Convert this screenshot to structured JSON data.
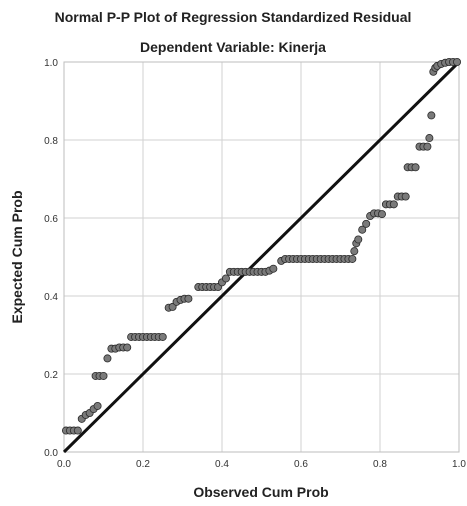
{
  "chart_data": {
    "type": "scatter",
    "title": "Normal P-P Plot of Regression Standardized Residual",
    "subtitle": "Dependent Variable: Kinerja",
    "xlabel": "Observed Cum Prob",
    "ylabel": "Expected Cum Prob",
    "xlim": [
      0,
      1
    ],
    "ylim": [
      0,
      1
    ],
    "xticks": [
      "0.0",
      "0.2",
      "0.4",
      "0.6",
      "0.8",
      "1.0"
    ],
    "yticks": [
      "0.0",
      "0.2",
      "0.4",
      "0.6",
      "0.8",
      "1.0"
    ],
    "grid": true,
    "reference_line": {
      "from": [
        0,
        0
      ],
      "to": [
        1,
        1
      ]
    },
    "points": [
      [
        0.005,
        0.055
      ],
      [
        0.015,
        0.055
      ],
      [
        0.025,
        0.055
      ],
      [
        0.035,
        0.055
      ],
      [
        0.045,
        0.085
      ],
      [
        0.055,
        0.095
      ],
      [
        0.065,
        0.1
      ],
      [
        0.075,
        0.11
      ],
      [
        0.085,
        0.118
      ],
      [
        0.08,
        0.195
      ],
      [
        0.09,
        0.195
      ],
      [
        0.1,
        0.195
      ],
      [
        0.11,
        0.24
      ],
      [
        0.12,
        0.265
      ],
      [
        0.13,
        0.265
      ],
      [
        0.14,
        0.268
      ],
      [
        0.15,
        0.268
      ],
      [
        0.16,
        0.268
      ],
      [
        0.17,
        0.295
      ],
      [
        0.18,
        0.295
      ],
      [
        0.19,
        0.295
      ],
      [
        0.2,
        0.295
      ],
      [
        0.21,
        0.295
      ],
      [
        0.22,
        0.295
      ],
      [
        0.23,
        0.295
      ],
      [
        0.24,
        0.295
      ],
      [
        0.25,
        0.295
      ],
      [
        0.265,
        0.37
      ],
      [
        0.275,
        0.372
      ],
      [
        0.285,
        0.385
      ],
      [
        0.295,
        0.39
      ],
      [
        0.305,
        0.393
      ],
      [
        0.315,
        0.393
      ],
      [
        0.34,
        0.423
      ],
      [
        0.35,
        0.423
      ],
      [
        0.36,
        0.423
      ],
      [
        0.37,
        0.423
      ],
      [
        0.38,
        0.423
      ],
      [
        0.39,
        0.423
      ],
      [
        0.4,
        0.435
      ],
      [
        0.41,
        0.445
      ],
      [
        0.42,
        0.462
      ],
      [
        0.43,
        0.462
      ],
      [
        0.44,
        0.462
      ],
      [
        0.45,
        0.462
      ],
      [
        0.46,
        0.462
      ],
      [
        0.47,
        0.462
      ],
      [
        0.48,
        0.462
      ],
      [
        0.49,
        0.462
      ],
      [
        0.5,
        0.462
      ],
      [
        0.51,
        0.462
      ],
      [
        0.52,
        0.465
      ],
      [
        0.53,
        0.47
      ],
      [
        0.55,
        0.49
      ],
      [
        0.56,
        0.495
      ],
      [
        0.57,
        0.495
      ],
      [
        0.58,
        0.495
      ],
      [
        0.59,
        0.495
      ],
      [
        0.6,
        0.495
      ],
      [
        0.61,
        0.495
      ],
      [
        0.62,
        0.495
      ],
      [
        0.63,
        0.495
      ],
      [
        0.64,
        0.495
      ],
      [
        0.65,
        0.495
      ],
      [
        0.66,
        0.495
      ],
      [
        0.67,
        0.495
      ],
      [
        0.68,
        0.495
      ],
      [
        0.69,
        0.495
      ],
      [
        0.7,
        0.495
      ],
      [
        0.71,
        0.495
      ],
      [
        0.72,
        0.495
      ],
      [
        0.73,
        0.495
      ],
      [
        0.735,
        0.515
      ],
      [
        0.74,
        0.535
      ],
      [
        0.745,
        0.545
      ],
      [
        0.755,
        0.57
      ],
      [
        0.765,
        0.585
      ],
      [
        0.775,
        0.605
      ],
      [
        0.785,
        0.612
      ],
      [
        0.795,
        0.612
      ],
      [
        0.805,
        0.61
      ],
      [
        0.815,
        0.635
      ],
      [
        0.825,
        0.635
      ],
      [
        0.835,
        0.635
      ],
      [
        0.845,
        0.655
      ],
      [
        0.855,
        0.655
      ],
      [
        0.865,
        0.655
      ],
      [
        0.87,
        0.73
      ],
      [
        0.88,
        0.73
      ],
      [
        0.89,
        0.73
      ],
      [
        0.9,
        0.783
      ],
      [
        0.91,
        0.783
      ],
      [
        0.92,
        0.783
      ],
      [
        0.925,
        0.805
      ],
      [
        0.93,
        0.863
      ],
      [
        0.935,
        0.975
      ],
      [
        0.94,
        0.985
      ],
      [
        0.945,
        0.99
      ],
      [
        0.955,
        0.995
      ],
      [
        0.965,
        0.998
      ],
      [
        0.975,
        1.0
      ],
      [
        0.985,
        1.0
      ],
      [
        0.995,
        1.0
      ]
    ]
  }
}
